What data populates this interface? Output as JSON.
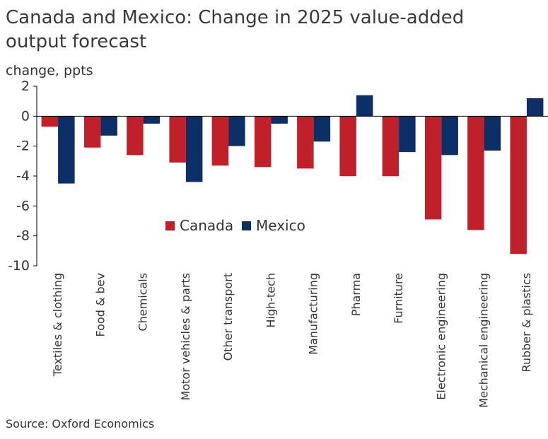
{
  "chart_data": {
    "type": "bar",
    "title": "Canada and Mexico: Change in 2025 value-added output forecast",
    "ylabel": "change, ppts",
    "xlabel": "",
    "ylim": [
      -10,
      2
    ],
    "yticks": [
      2,
      0,
      -2,
      -4,
      -6,
      -8,
      -10
    ],
    "grid": false,
    "legend_position": "center",
    "categories": [
      "Textiles & clothing",
      "Food & bev",
      "Chemicals",
      "Motor vehicles & parts",
      "Other transport",
      "High-tech",
      "Manufacturing",
      "Pharma",
      "Furniture",
      "Electronic engineering",
      "Mechanical engineering",
      "Rubber & plastics"
    ],
    "series": [
      {
        "name": "Canada",
        "color": "#c0202a",
        "values": [
          -0.7,
          -2.1,
          -2.6,
          -3.1,
          -3.3,
          -3.4,
          -3.5,
          -4.0,
          -4.0,
          -6.9,
          -7.6,
          -9.2
        ]
      },
      {
        "name": "Mexico",
        "color": "#0b2f66",
        "values": [
          -4.5,
          -1.3,
          -0.5,
          -4.4,
          -2.0,
          -0.5,
          -1.7,
          1.4,
          -2.4,
          -2.6,
          -2.3,
          1.2
        ]
      }
    ],
    "source": "Source: Oxford Economics"
  }
}
